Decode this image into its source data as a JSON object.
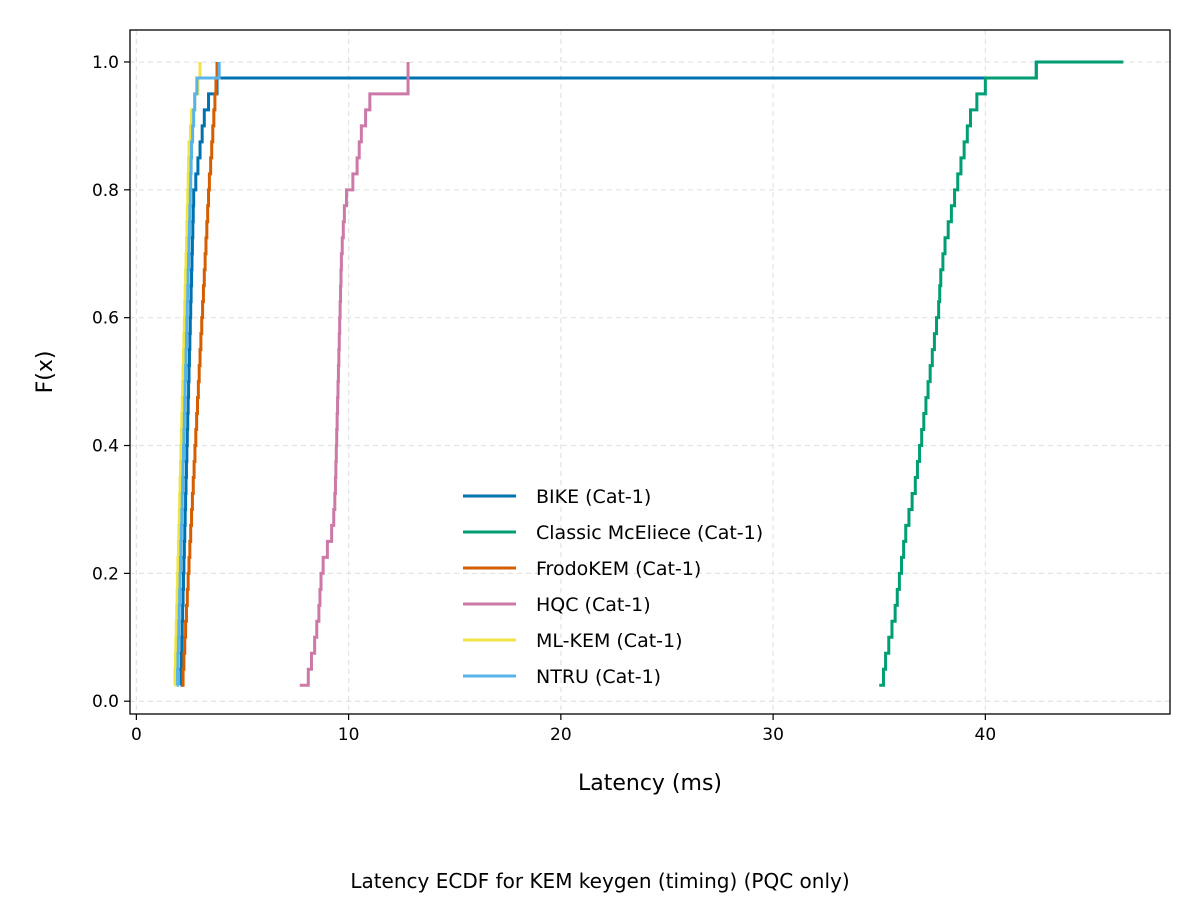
{
  "chart_data": {
    "type": "line",
    "step": true,
    "xlabel": "Latency (ms)",
    "ylabel": "F(x)",
    "caption": "Latency ECDF for KEM keygen (timing) (PQC only)",
    "xlim": [
      -0.3,
      48.7
    ],
    "ylim": [
      -0.02,
      1.05
    ],
    "x_ticks": [
      0,
      10,
      20,
      30,
      40
    ],
    "y_ticks": [
      0.0,
      0.2,
      0.4,
      0.6,
      0.8,
      1.0
    ],
    "x_tick_labels": [
      "0",
      "10",
      "20",
      "30",
      "40"
    ],
    "y_tick_labels": [
      "0.0",
      "0.2",
      "0.4",
      "0.6",
      "0.8",
      "1.0"
    ],
    "grid": true,
    "legend_position": "lower-center",
    "series": [
      {
        "name": "BIKE (Cat-1)",
        "color": "#0072B2",
        "x": [
          2.08,
          2.1,
          2.12,
          2.14,
          2.16,
          2.18,
          2.2,
          2.22,
          2.24,
          2.26,
          2.28,
          2.3,
          2.32,
          2.34,
          2.36,
          2.38,
          2.4,
          2.42,
          2.44,
          2.46,
          2.48,
          2.5,
          2.52,
          2.54,
          2.56,
          2.58,
          2.6,
          2.62,
          2.64,
          2.66,
          2.68,
          2.7,
          2.8,
          2.9,
          3.0,
          3.1,
          3.2,
          3.4,
          3.8,
          42.4
        ],
        "y": [
          0.025,
          0.05,
          0.075,
          0.1,
          0.125,
          0.15,
          0.175,
          0.2,
          0.225,
          0.25,
          0.275,
          0.3,
          0.325,
          0.35,
          0.375,
          0.4,
          0.425,
          0.45,
          0.475,
          0.5,
          0.525,
          0.55,
          0.575,
          0.6,
          0.625,
          0.65,
          0.675,
          0.7,
          0.725,
          0.75,
          0.775,
          0.8,
          0.825,
          0.85,
          0.875,
          0.9,
          0.925,
          0.95,
          0.975,
          1.0
        ]
      },
      {
        "name": "Classic McEliece (Cat-1)",
        "color": "#009E73",
        "x": [
          35.0,
          35.2,
          35.3,
          35.45,
          35.6,
          35.75,
          35.85,
          35.95,
          36.05,
          36.15,
          36.25,
          36.4,
          36.55,
          36.7,
          36.8,
          36.9,
          37.0,
          37.1,
          37.2,
          37.3,
          37.4,
          37.5,
          37.6,
          37.7,
          37.8,
          37.85,
          37.9,
          38.0,
          38.1,
          38.25,
          38.4,
          38.55,
          38.7,
          38.85,
          39.0,
          39.15,
          39.3,
          39.6,
          40.0,
          42.4
        ],
        "y": [
          0.025,
          0.05,
          0.075,
          0.1,
          0.125,
          0.15,
          0.175,
          0.2,
          0.225,
          0.25,
          0.275,
          0.3,
          0.325,
          0.35,
          0.375,
          0.4,
          0.425,
          0.45,
          0.475,
          0.5,
          0.525,
          0.55,
          0.575,
          0.6,
          0.625,
          0.65,
          0.675,
          0.7,
          0.725,
          0.75,
          0.775,
          0.8,
          0.825,
          0.85,
          0.875,
          0.9,
          0.925,
          0.95,
          0.975,
          1.0
        ],
        "x_end": 46.5
      },
      {
        "name": "FrodoKEM (Cat-1)",
        "color": "#D55E00",
        "x": [
          2.12,
          2.2,
          2.24,
          2.28,
          2.32,
          2.36,
          2.4,
          2.44,
          2.48,
          2.52,
          2.56,
          2.6,
          2.64,
          2.68,
          2.72,
          2.76,
          2.8,
          2.84,
          2.88,
          2.92,
          2.96,
          3.0,
          3.04,
          3.08,
          3.12,
          3.16,
          3.2,
          3.24,
          3.28,
          3.32,
          3.36,
          3.4,
          3.44,
          3.5,
          3.55,
          3.6,
          3.65,
          3.7,
          3.75,
          3.8
        ],
        "y": [
          0.025,
          0.05,
          0.075,
          0.1,
          0.125,
          0.15,
          0.175,
          0.2,
          0.225,
          0.25,
          0.275,
          0.3,
          0.325,
          0.35,
          0.375,
          0.4,
          0.425,
          0.45,
          0.475,
          0.5,
          0.525,
          0.55,
          0.575,
          0.6,
          0.625,
          0.65,
          0.675,
          0.7,
          0.725,
          0.75,
          0.775,
          0.8,
          0.825,
          0.85,
          0.875,
          0.9,
          0.925,
          0.95,
          0.975,
          1.0
        ]
      },
      {
        "name": "HQC (Cat-1)",
        "color": "#CC79A7",
        "x": [
          7.7,
          8.1,
          8.25,
          8.4,
          8.5,
          8.6,
          8.65,
          8.7,
          8.8,
          9.0,
          9.2,
          9.3,
          9.35,
          9.38,
          9.4,
          9.42,
          9.44,
          9.46,
          9.48,
          9.5,
          9.52,
          9.54,
          9.56,
          9.58,
          9.6,
          9.62,
          9.64,
          9.66,
          9.7,
          9.75,
          9.8,
          9.9,
          10.2,
          10.4,
          10.5,
          10.6,
          10.8,
          11.0,
          12.8,
          12.8
        ],
        "y": [
          0.025,
          0.05,
          0.075,
          0.1,
          0.125,
          0.15,
          0.175,
          0.2,
          0.225,
          0.25,
          0.275,
          0.3,
          0.325,
          0.35,
          0.375,
          0.4,
          0.425,
          0.45,
          0.475,
          0.5,
          0.525,
          0.55,
          0.575,
          0.6,
          0.625,
          0.65,
          0.675,
          0.7,
          0.725,
          0.75,
          0.775,
          0.8,
          0.825,
          0.85,
          0.875,
          0.9,
          0.925,
          0.95,
          0.975,
          1.0
        ]
      },
      {
        "name": "ML-KEM (Cat-1)",
        "color": "#F0E442",
        "x": [
          1.8,
          1.82,
          1.84,
          1.86,
          1.88,
          1.9,
          1.92,
          1.94,
          1.96,
          1.98,
          2.0,
          2.02,
          2.04,
          2.06,
          2.08,
          2.1,
          2.12,
          2.14,
          2.16,
          2.18,
          2.2,
          2.22,
          2.24,
          2.26,
          2.28,
          2.3,
          2.32,
          2.34,
          2.36,
          2.38,
          2.4,
          2.42,
          2.44,
          2.46,
          2.48,
          2.55,
          2.6,
          2.75,
          2.9,
          3.0
        ],
        "y": [
          0.025,
          0.05,
          0.075,
          0.1,
          0.125,
          0.15,
          0.175,
          0.2,
          0.225,
          0.25,
          0.275,
          0.3,
          0.325,
          0.35,
          0.375,
          0.4,
          0.425,
          0.45,
          0.475,
          0.5,
          0.525,
          0.55,
          0.575,
          0.6,
          0.625,
          0.65,
          0.675,
          0.7,
          0.725,
          0.75,
          0.775,
          0.8,
          0.825,
          0.85,
          0.875,
          0.9,
          0.925,
          0.95,
          0.975,
          1.0
        ]
      },
      {
        "name": "NTRU (Cat-1)",
        "color": "#56B4E9",
        "x": [
          1.9,
          1.94,
          1.96,
          1.98,
          2.0,
          2.02,
          2.04,
          2.06,
          2.08,
          2.1,
          2.12,
          2.14,
          2.16,
          2.18,
          2.2,
          2.22,
          2.24,
          2.26,
          2.28,
          2.3,
          2.32,
          2.34,
          2.36,
          2.38,
          2.4,
          2.42,
          2.44,
          2.46,
          2.48,
          2.5,
          2.52,
          2.54,
          2.56,
          2.58,
          2.6,
          2.65,
          2.7,
          2.75,
          2.85,
          3.9
        ],
        "y": [
          0.025,
          0.05,
          0.075,
          0.1,
          0.125,
          0.15,
          0.175,
          0.2,
          0.225,
          0.25,
          0.275,
          0.3,
          0.325,
          0.35,
          0.375,
          0.4,
          0.425,
          0.45,
          0.475,
          0.5,
          0.525,
          0.55,
          0.575,
          0.6,
          0.625,
          0.65,
          0.675,
          0.7,
          0.725,
          0.75,
          0.775,
          0.8,
          0.825,
          0.85,
          0.875,
          0.9,
          0.925,
          0.95,
          0.975,
          1.0
        ]
      }
    ]
  }
}
